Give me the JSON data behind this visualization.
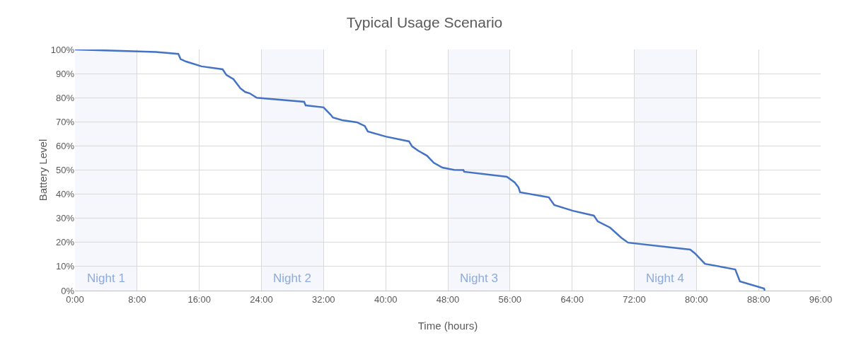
{
  "chart_data": {
    "type": "line",
    "title": "Typical Usage Scenario",
    "xlabel": "Time (hours)",
    "ylabel": "Battery Level",
    "x": [
      0,
      10.4,
      13.3,
      13.6,
      14.3,
      16.3,
      19.0,
      19.5,
      20.4,
      21.3,
      21.9,
      22.5,
      23.4,
      29.5,
      29.7,
      32.0,
      32.9,
      33.2,
      34.4,
      36.3,
      37.3,
      37.7,
      40.0,
      43.0,
      43.4,
      44.2,
      45.3,
      46.2,
      47.3,
      48.8,
      50.0,
      50.1,
      55.6,
      56.6,
      57.1,
      57.3,
      61.0,
      61.7,
      64.1,
      66.8,
      67.3,
      68.9,
      70.3,
      71.2,
      79.2,
      79.8,
      81.1,
      85.0,
      85.6,
      88.7,
      88.8
    ],
    "series": [
      {
        "color": "#4472c4",
        "values": [
          100,
          99,
          98.2,
          96,
          95,
          93,
          91.8,
          89.4,
          87.7,
          83.9,
          82.4,
          81.8,
          80,
          78.3,
          76.8,
          76,
          73,
          71.8,
          70.7,
          69.8,
          68.3,
          66,
          63.9,
          61.9,
          59.8,
          58,
          56,
          53,
          51,
          50.1,
          50,
          49.3,
          47.2,
          44.9,
          42.8,
          40.8,
          38.7,
          35.5,
          33.1,
          31.1,
          28.7,
          26.1,
          22,
          19.9,
          17,
          15.5,
          11.1,
          8.8,
          3.8,
          0.9,
          0
        ]
      }
    ],
    "xlim": [
      0,
      96
    ],
    "xticks": [
      {
        "value": 0,
        "label": "0:00"
      },
      {
        "value": 8,
        "label": "8:00"
      },
      {
        "value": 16,
        "label": "16:00"
      },
      {
        "value": 24,
        "label": "24:00"
      },
      {
        "value": 32,
        "label": "32:00"
      },
      {
        "value": 40,
        "label": "40:00"
      },
      {
        "value": 48,
        "label": "48:00"
      },
      {
        "value": 56,
        "label": "56:00"
      },
      {
        "value": 64,
        "label": "64:00"
      },
      {
        "value": 72,
        "label": "72:00"
      },
      {
        "value": 80,
        "label": "80:00"
      },
      {
        "value": 88,
        "label": "88:00"
      },
      {
        "value": 96,
        "label": "96:00"
      }
    ],
    "ylim": [
      0,
      100
    ],
    "yticks": [
      {
        "value": 0,
        "label": "0%"
      },
      {
        "value": 10,
        "label": "10%"
      },
      {
        "value": 20,
        "label": "20%"
      },
      {
        "value": 30,
        "label": "30%"
      },
      {
        "value": 40,
        "label": "40%"
      },
      {
        "value": 50,
        "label": "50%"
      },
      {
        "value": 60,
        "label": "60%"
      },
      {
        "value": 70,
        "label": "70%"
      },
      {
        "value": 80,
        "label": "80%"
      },
      {
        "value": 90,
        "label": "90%"
      },
      {
        "value": 100,
        "label": "100%"
      }
    ],
    "bands": [
      {
        "axis": "x",
        "from": 0,
        "to": 8,
        "label": "Night 1",
        "color": "#f5f7fd"
      },
      {
        "axis": "x",
        "from": 24,
        "to": 32,
        "label": "Night 2",
        "color": "#f5f7fd"
      },
      {
        "axis": "x",
        "from": 48,
        "to": 56,
        "label": "Night 3",
        "color": "#f5f7fd"
      },
      {
        "axis": "x",
        "from": 72,
        "to": 80,
        "label": "Night 4",
        "color": "#f5f7fd"
      }
    ],
    "grid": true,
    "line_style": "solid",
    "marker": "none"
  }
}
